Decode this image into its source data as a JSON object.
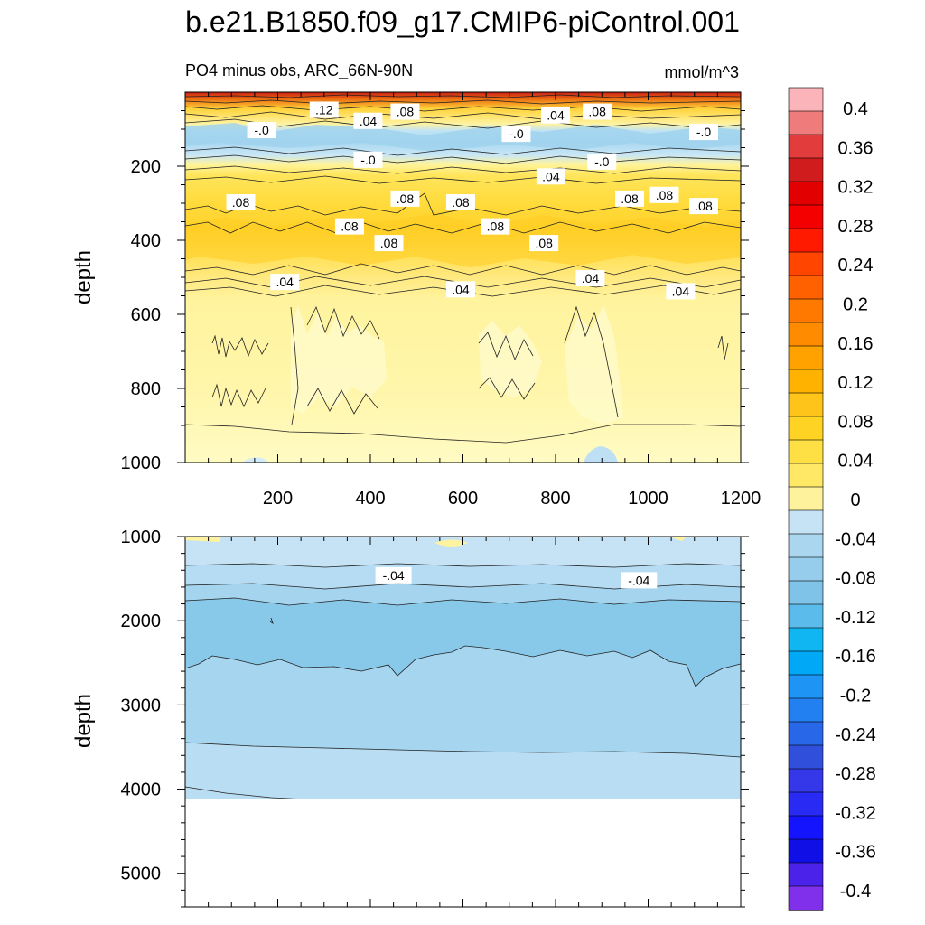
{
  "title": "b.e21.B1850.f09_g17.CMIP6-piControl.001",
  "subtitle": "PO4 minus obs, ARC_66N-90N",
  "units": "mmol/m^3",
  "colorbar": {
    "labels": [
      "0.4",
      "0.36",
      "0.32",
      "0.28",
      "0.24",
      "0.2",
      "0.16",
      "0.12",
      "0.08",
      "0.04",
      "0",
      "-0.04",
      "-0.08",
      "-0.12",
      "-0.16",
      "-0.2",
      "-0.24",
      "-0.28",
      "-0.32",
      "-0.36",
      "-0.4"
    ],
    "colors": [
      "#fbb4b9",
      "#f07b7b",
      "#e23c3c",
      "#d01c1c",
      "#e20000",
      "#f40000",
      "#ff1a00",
      "#ff4500",
      "#ff6000",
      "#ff7800",
      "#ff8c00",
      "#ffa200",
      "#ffb300",
      "#ffc41a",
      "#ffd324",
      "#ffe044",
      "#ffe866",
      "#fff29c",
      "#c5e3f5",
      "#aad6f0",
      "#97cdec",
      "#80c3e8",
      "#5bbcec",
      "#0fb6f2",
      "#00a8f5",
      "#1e95f5",
      "#2280f0",
      "#2868e8",
      "#3050dc",
      "#3438e8",
      "#2a2af5",
      "#1414ff",
      "#1010e6",
      "#4a22ea",
      "#8030ea"
    ]
  },
  "chart_data": [
    {
      "type": "heatmap",
      "name": "upper-ocean-panel",
      "xlabel": "",
      "ylabel": "depth",
      "xlim": [
        0,
        1200
      ],
      "ylim": [
        1000,
        0
      ],
      "xticks": [
        "200",
        "400",
        "600",
        "800",
        "1000",
        "1200"
      ],
      "xtick_values": [
        200,
        400,
        600,
        800,
        1000,
        1200
      ],
      "yticks": [
        "200",
        "400",
        "600",
        "800",
        "1000"
      ],
      "ytick_values": [
        200,
        400,
        600,
        800,
        1000
      ],
      "contour_labels": [
        {
          "text": ".12",
          "x": 300,
          "y": 50
        },
        {
          "text": ".04",
          "x": 395,
          "y": 80
        },
        {
          "text": ".08",
          "x": 475,
          "y": 55
        },
        {
          "text": "-.0",
          "x": 165,
          "y": 105
        },
        {
          "text": ".04",
          "x": 800,
          "y": 65
        },
        {
          "text": ".08",
          "x": 890,
          "y": 55
        },
        {
          "text": "-.0",
          "x": 715,
          "y": 115
        },
        {
          "text": "-.0",
          "x": 1120,
          "y": 110
        },
        {
          "text": "-.0",
          "x": 395,
          "y": 185
        },
        {
          "text": ".04",
          "x": 790,
          "y": 230
        },
        {
          "text": "-.0",
          "x": 900,
          "y": 190
        },
        {
          "text": ".08",
          "x": 120,
          "y": 300
        },
        {
          "text": ".08",
          "x": 475,
          "y": 290
        },
        {
          "text": ".08",
          "x": 595,
          "y": 300
        },
        {
          "text": ".08",
          "x": 960,
          "y": 290
        },
        {
          "text": ".08",
          "x": 1035,
          "y": 280
        },
        {
          "text": ".08",
          "x": 1120,
          "y": 310
        },
        {
          "text": ".08",
          "x": 355,
          "y": 365
        },
        {
          "text": ".08",
          "x": 440,
          "y": 410
        },
        {
          "text": ".08",
          "x": 670,
          "y": 365
        },
        {
          "text": ".08",
          "x": 775,
          "y": 410
        },
        {
          "text": ".04",
          "x": 215,
          "y": 515
        },
        {
          "text": ".04",
          "x": 595,
          "y": 535
        },
        {
          "text": ".04",
          "x": 875,
          "y": 505
        },
        {
          "text": ".04",
          "x": 1070,
          "y": 540
        }
      ]
    },
    {
      "type": "heatmap",
      "name": "deep-ocean-panel",
      "xlabel": "",
      "ylabel": "depth",
      "xlim": [
        0,
        1200
      ],
      "ylim": [
        5400,
        1000
      ],
      "yticks": [
        "1000",
        "2000",
        "3000",
        "4000",
        "5000"
      ],
      "ytick_values": [
        1000,
        2000,
        3000,
        4000,
        5000
      ],
      "max_depth_with_data": 4120,
      "contour_labels": [
        {
          "text": "-.04",
          "x": 450,
          "y": 1470
        },
        {
          "text": "-.04",
          "x": 980,
          "y": 1530
        }
      ]
    }
  ]
}
